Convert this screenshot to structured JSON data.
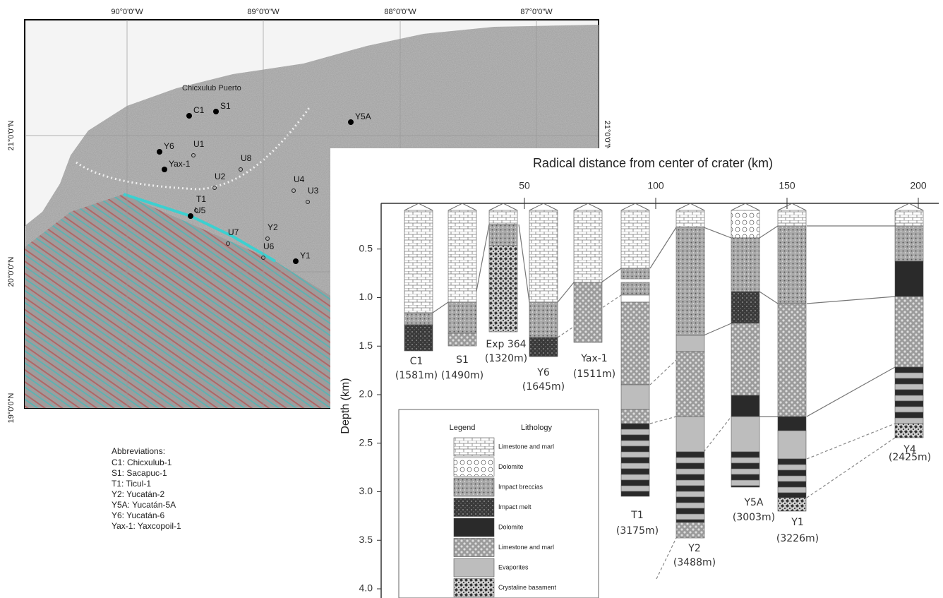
{
  "map": {
    "lon_labels": [
      "90°0'0\"W",
      "89°0'0\"W",
      "88°0'0\"W",
      "87°0'0\"W"
    ],
    "lat_labels_left": [
      "21°0'0\"N",
      "20°0'0\"N",
      "19°0'0\"N"
    ],
    "lat_labels_right": [
      "21°0'0\"N"
    ],
    "place": "Chicxulub Puerto",
    "wells": [
      "C1",
      "S1",
      "Y6",
      "Yax-1",
      "U1",
      "U8",
      "U2",
      "T1",
      "U5",
      "U4",
      "U3",
      "U7",
      "Y2",
      "U6",
      "Y1",
      "Y5A"
    ]
  },
  "abbreviations": {
    "title": "Abbreviations:",
    "items": [
      "C1: Chicxulub-1",
      "S1: Sacapuc-1",
      "T1: Ticul-1",
      "Y2: Yucatán-2",
      "Y5A: Yucatán-5A",
      "Y6: Yucatán-6",
      "Yax-1: Yaxcopoil-1"
    ]
  },
  "section": {
    "title": "Radical distance from center of crater (km)",
    "x_ticks": [
      50,
      100,
      150,
      200
    ],
    "y_label": "Depth (km)",
    "y_ticks": [
      0.5,
      {
        "value": 1,
        "label": "1.0"
      },
      1.5,
      {
        "value": 2,
        "label": "2.0"
      },
      2.5,
      {
        "value": 3,
        "label": "3.0"
      },
      3.5,
      {
        "value": 4,
        "label": "4.0"
      }
    ],
    "columns": [
      {
        "name": "C1",
        "depth": "(1581m)"
      },
      {
        "name": "S1",
        "depth": "(1490m)"
      },
      {
        "name": "Exp 364",
        "depth": "(1320m)"
      },
      {
        "name": "Y6",
        "depth": "(1645m)"
      },
      {
        "name": "Yax-1",
        "depth": "(1511m)"
      },
      {
        "name": "T1",
        "depth": "(3175m)"
      },
      {
        "name": "Y2",
        "depth": "(3488m)"
      },
      {
        "name": "Y5A",
        "depth": "(3003m)"
      },
      {
        "name": "Y1",
        "depth": "(3226m)"
      },
      {
        "name": "Y4",
        "depth": "(2425m)"
      }
    ]
  },
  "legend": {
    "title": "Legend",
    "heading": "Lithology",
    "items": [
      "Limestone and marl",
      "Dolomite",
      "Impact breccias",
      "Impact melt",
      "Dolomite",
      "Limestone and marl",
      "Evaporites",
      "Crystaline basament"
    ]
  }
}
